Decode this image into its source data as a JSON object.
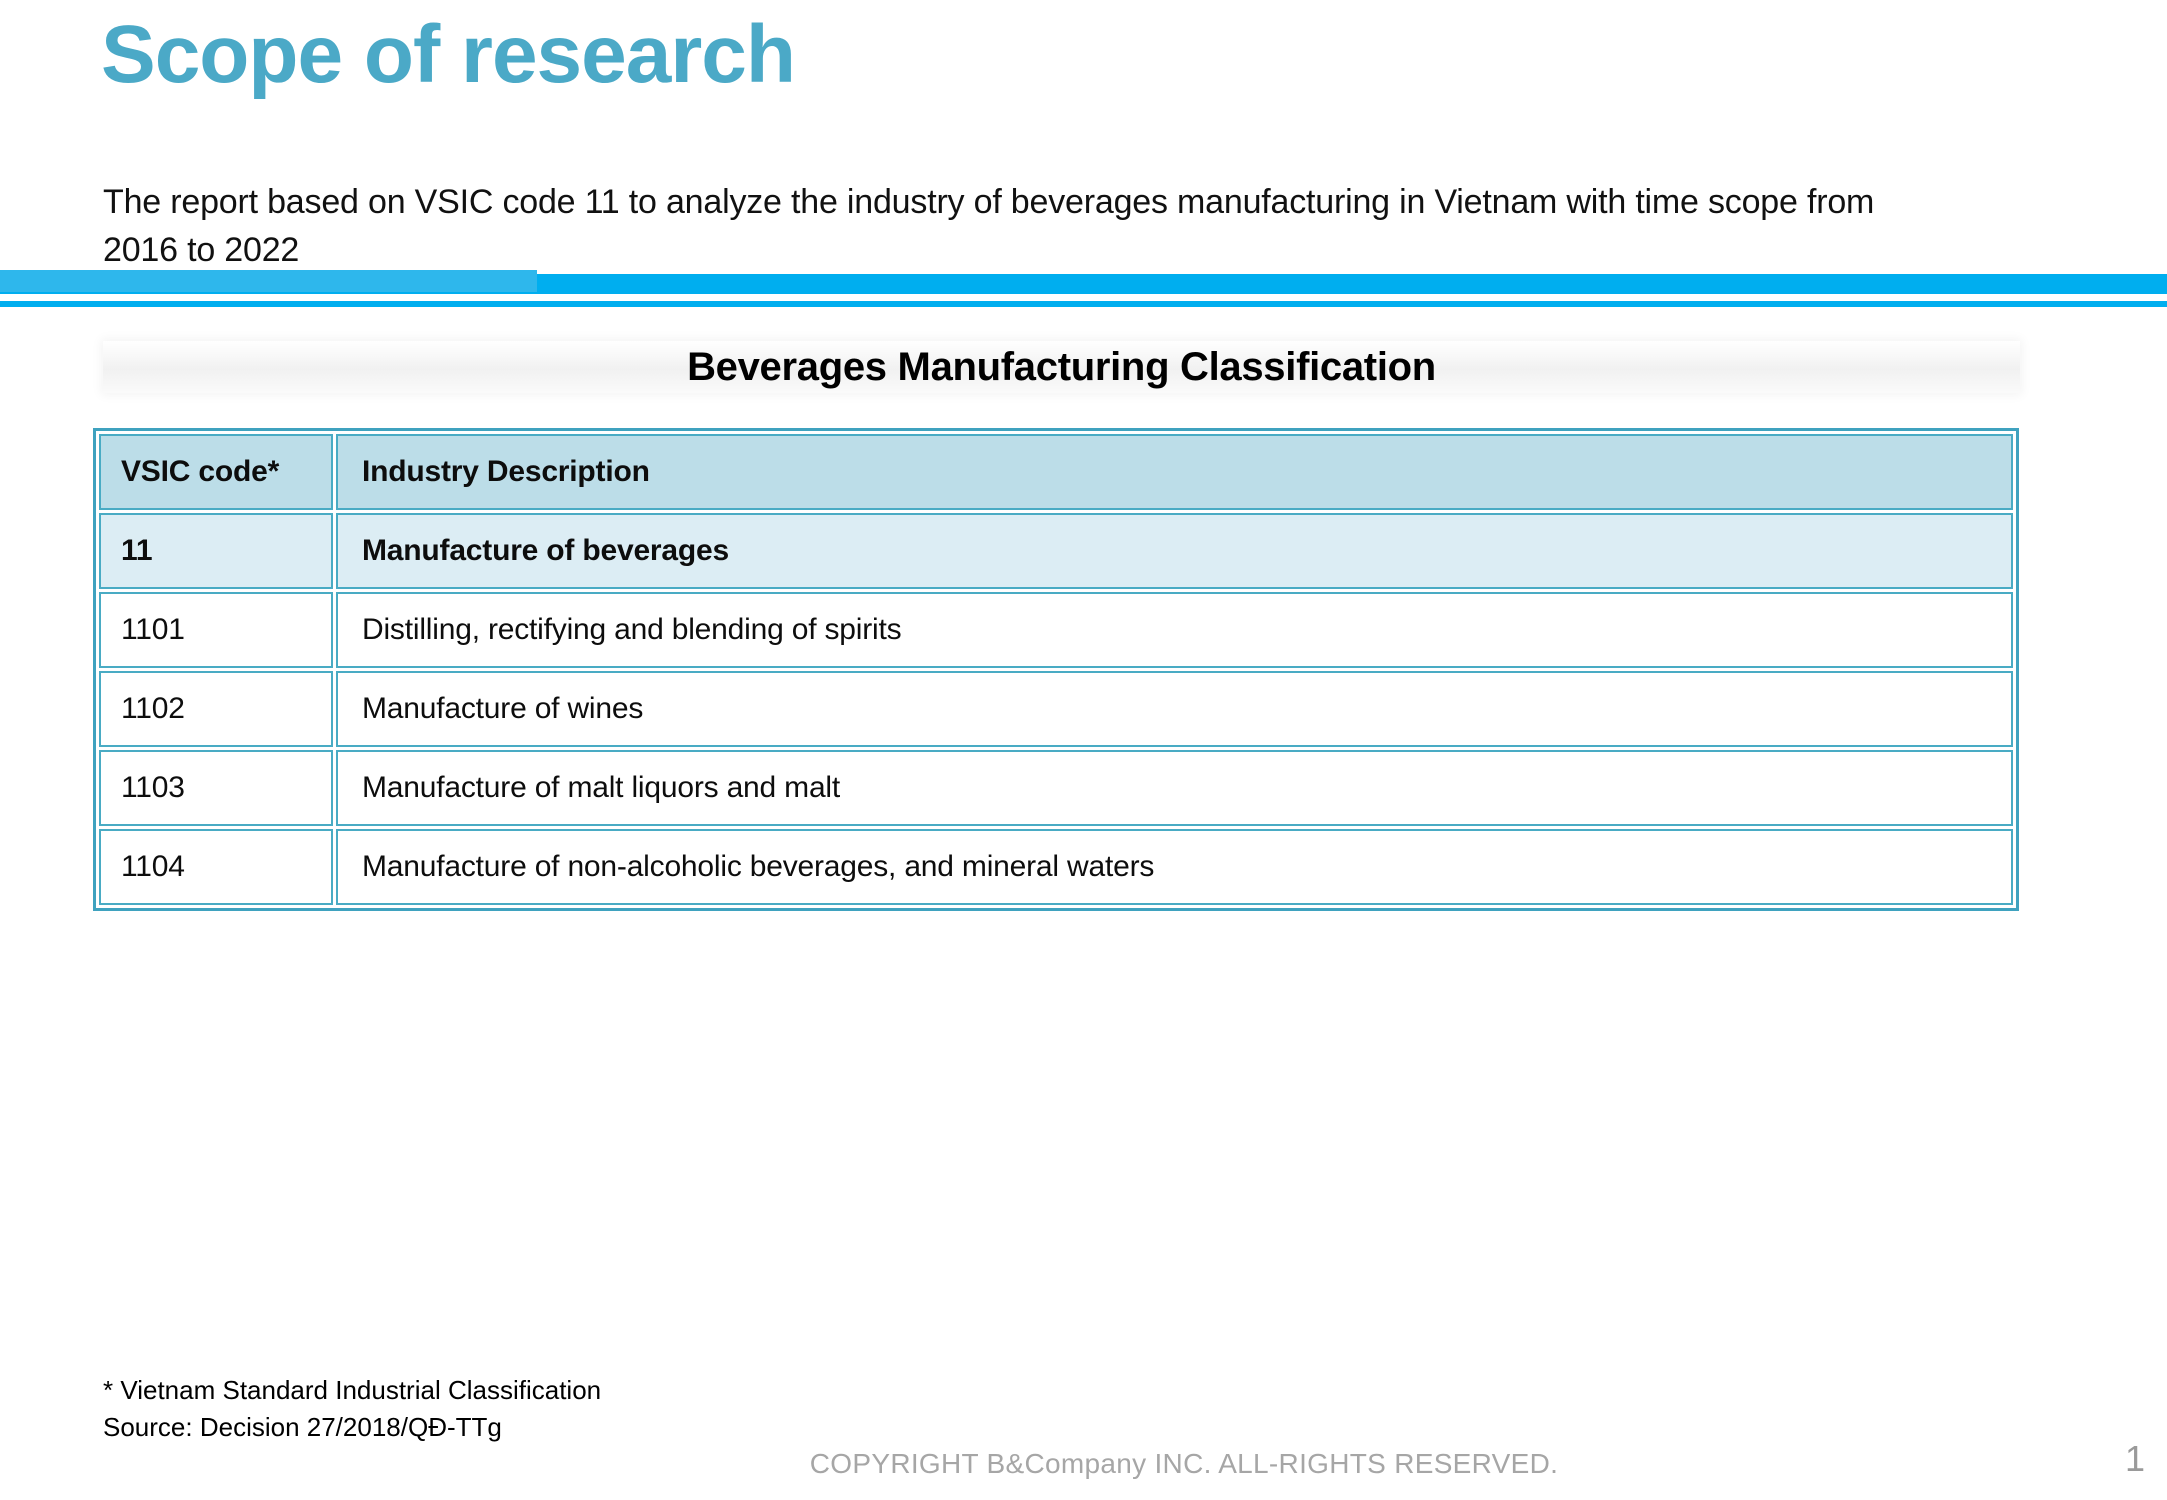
{
  "page_title": "Scope of research",
  "intro": {
    "line1": "The report based on VSIC code 11 to analyze the industry of beverages manufacturing in Vietnam with time scope from",
    "line2": "2016 to 2022"
  },
  "section": {
    "title": "Beverages Manufacturing Classification"
  },
  "table": {
    "headers": [
      "VSIC code*",
      "Industry Description"
    ],
    "rows": [
      {
        "code": "11",
        "description": "Manufacture of beverages"
      },
      {
        "code": "1101",
        "description": "Distilling, rectifying and blending of spirits"
      },
      {
        "code": "1102",
        "description": "Manufacture of wines"
      },
      {
        "code": "1103",
        "description": "Manufacture of malt liquors and malt"
      },
      {
        "code": "1104",
        "description": "Manufacture of non-alcoholic beverages, and mineral waters"
      }
    ]
  },
  "footnotes": {
    "asterisk": "* Vietnam Standard Industrial Classification",
    "source": "Source: Decision 27/2018/QĐ-TTg"
  },
  "footer": {
    "copyright": "COPYRIGHT B&Company INC. ALL-RIGHTS RESERVED.",
    "page_number": "1"
  },
  "colors": {
    "title_teal": "#4BA9C7",
    "divider_cyan": "#00AEEF",
    "divider_accent": "#2EB7EC",
    "table_border_teal": "#3FA2BF",
    "header_fill": "#BCDDE8",
    "emphasis_row_fill": "#DCEDF4",
    "footer_gray": "#A6A6A6"
  }
}
